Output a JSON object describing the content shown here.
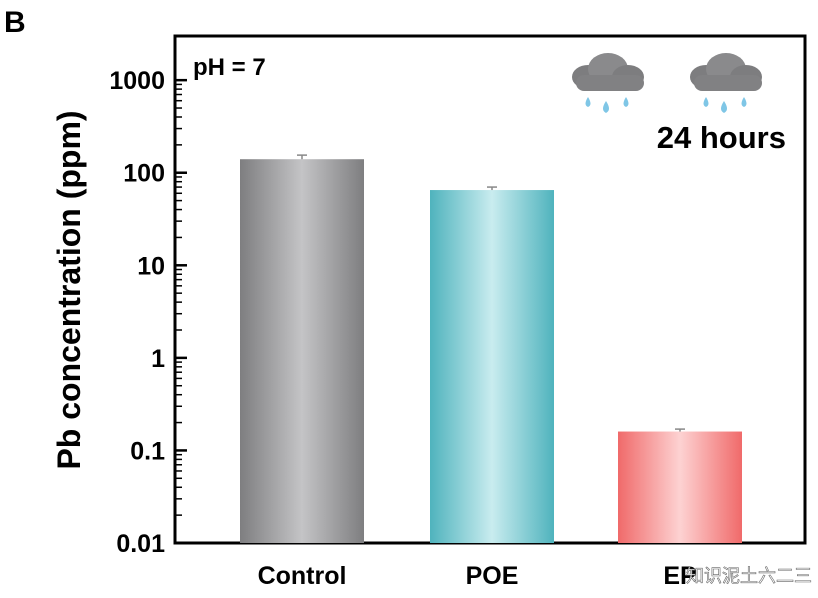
{
  "panel_label": "B",
  "annotation_ph": "pH = 7",
  "annotation_time": "24 hours",
  "icons": [
    "rain-cloud-icon",
    "rain-cloud-icon"
  ],
  "watermark": "知识泥土六二三",
  "chart_data": {
    "type": "bar",
    "title": "",
    "xlabel": "",
    "ylabel": "Pb concentration (ppm)",
    "yscale": "log",
    "ylim": [
      0.01,
      3000
    ],
    "yticks": [
      0.01,
      0.1,
      1,
      10,
      100,
      1000
    ],
    "ytick_labels": [
      "0.01",
      "0.1",
      "1",
      "10",
      "100",
      "1000"
    ],
    "categories": [
      "Control",
      "POE",
      "EP"
    ],
    "values": [
      140,
      65,
      0.16
    ],
    "errors": [
      15,
      5,
      0.01
    ],
    "colors": [
      "#9a9a9c",
      "#5bbdc6",
      "#f27d7d"
    ],
    "grid": false,
    "legend": "none"
  }
}
